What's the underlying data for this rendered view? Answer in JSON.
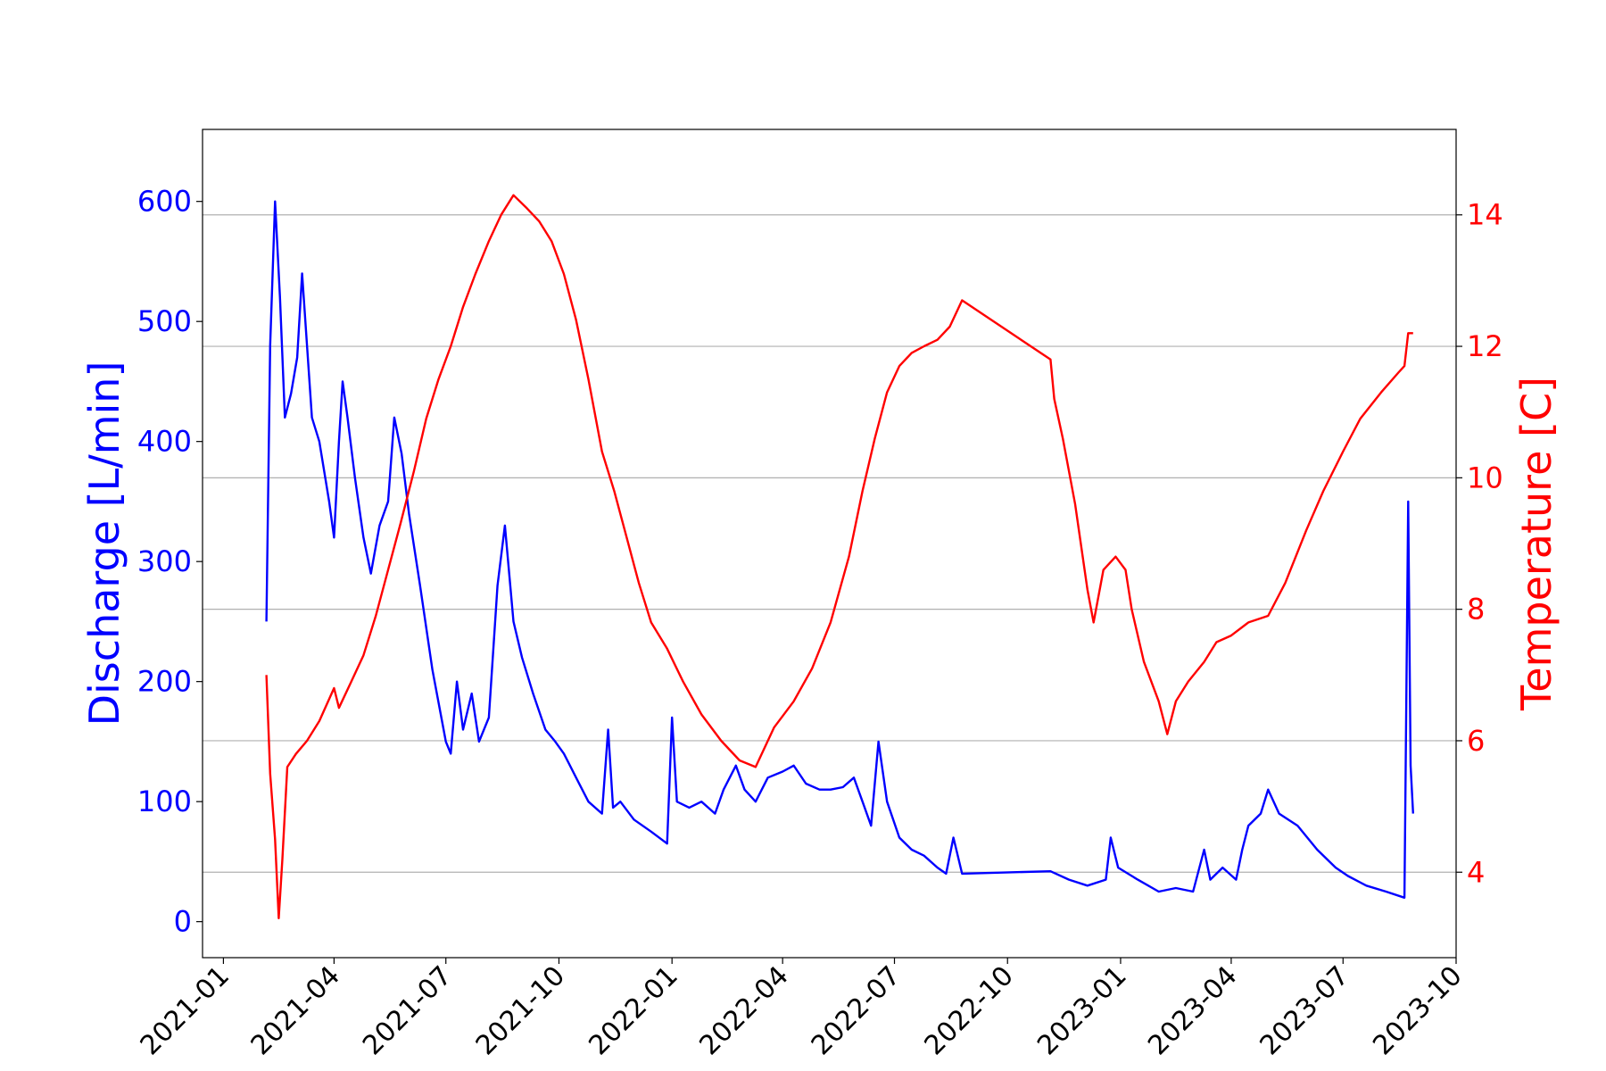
{
  "chart_data": {
    "type": "line",
    "title": "",
    "xlabel": "",
    "x_axis": {
      "type": "date",
      "range": [
        "2020-12-15",
        "2023-10-01"
      ],
      "ticks": [
        "2021-01",
        "2021-04",
        "2021-07",
        "2021-10",
        "2022-01",
        "2022-04",
        "2022-07",
        "2022-10",
        "2023-01",
        "2023-04",
        "2023-07",
        "2023-10"
      ],
      "tick_rotation": 45
    },
    "y_left": {
      "label": "Discharge [L/min]",
      "color": "#0000ff",
      "range": [
        -30,
        660
      ],
      "ticks": [
        "0",
        "100",
        "200",
        "300",
        "400",
        "500",
        "600"
      ]
    },
    "y_right": {
      "label": "Temperature [C]",
      "color": "#ff0000",
      "range": [
        2.7,
        15.3
      ],
      "ticks": [
        "4",
        "6",
        "8",
        "10",
        "12",
        "14"
      ],
      "grid": true
    },
    "grid": "horizontal lines at right-axis ticks",
    "legend": "none",
    "series": [
      {
        "axis": "left",
        "color": "#0000ff",
        "points": [
          [
            "2021-02-05",
            250
          ],
          [
            "2021-02-08",
            480
          ],
          [
            "2021-02-12",
            600
          ],
          [
            "2021-02-16",
            520
          ],
          [
            "2021-02-20",
            420
          ],
          [
            "2021-02-25",
            440
          ],
          [
            "2021-03-02",
            470
          ],
          [
            "2021-03-06",
            540
          ],
          [
            "2021-03-10",
            480
          ],
          [
            "2021-03-14",
            420
          ],
          [
            "2021-03-20",
            400
          ],
          [
            "2021-03-28",
            350
          ],
          [
            "2021-04-01",
            320
          ],
          [
            "2021-04-05",
            400
          ],
          [
            "2021-04-08",
            450
          ],
          [
            "2021-04-12",
            420
          ],
          [
            "2021-04-18",
            370
          ],
          [
            "2021-04-25",
            320
          ],
          [
            "2021-05-01",
            290
          ],
          [
            "2021-05-08",
            330
          ],
          [
            "2021-05-15",
            350
          ],
          [
            "2021-05-20",
            420
          ],
          [
            "2021-05-26",
            390
          ],
          [
            "2021-06-01",
            340
          ],
          [
            "2021-06-10",
            280
          ],
          [
            "2021-06-20",
            210
          ],
          [
            "2021-07-01",
            150
          ],
          [
            "2021-07-05",
            140
          ],
          [
            "2021-07-10",
            200
          ],
          [
            "2021-07-15",
            160
          ],
          [
            "2021-07-22",
            190
          ],
          [
            "2021-07-28",
            150
          ],
          [
            "2021-08-05",
            170
          ],
          [
            "2021-08-12",
            280
          ],
          [
            "2021-08-18",
            330
          ],
          [
            "2021-08-25",
            250
          ],
          [
            "2021-09-01",
            220
          ],
          [
            "2021-09-10",
            190
          ],
          [
            "2021-09-20",
            160
          ],
          [
            "2021-09-28",
            150
          ],
          [
            "2021-10-05",
            140
          ],
          [
            "2021-10-15",
            120
          ],
          [
            "2021-10-25",
            100
          ],
          [
            "2021-11-05",
            90
          ],
          [
            "2021-11-10",
            160
          ],
          [
            "2021-11-14",
            95
          ],
          [
            "2021-11-20",
            100
          ],
          [
            "2021-12-01",
            85
          ],
          [
            "2021-12-15",
            75
          ],
          [
            "2021-12-28",
            65
          ],
          [
            "2022-01-01",
            170
          ],
          [
            "2022-01-05",
            100
          ],
          [
            "2022-01-15",
            95
          ],
          [
            "2022-01-25",
            100
          ],
          [
            "2022-02-05",
            90
          ],
          [
            "2022-02-12",
            110
          ],
          [
            "2022-02-22",
            130
          ],
          [
            "2022-03-01",
            110
          ],
          [
            "2022-03-10",
            100
          ],
          [
            "2022-03-20",
            120
          ],
          [
            "2022-04-01",
            125
          ],
          [
            "2022-04-10",
            130
          ],
          [
            "2022-04-20",
            115
          ],
          [
            "2022-05-01",
            110
          ],
          [
            "2022-05-10",
            110
          ],
          [
            "2022-05-20",
            112
          ],
          [
            "2022-05-29",
            120
          ],
          [
            "2022-06-05",
            100
          ],
          [
            "2022-06-12",
            80
          ],
          [
            "2022-06-18",
            150
          ],
          [
            "2022-06-25",
            100
          ],
          [
            "2022-07-05",
            70
          ],
          [
            "2022-07-15",
            60
          ],
          [
            "2022-07-25",
            55
          ],
          [
            "2022-08-05",
            45
          ],
          [
            "2022-08-12",
            40
          ],
          [
            "2022-08-18",
            70
          ],
          [
            "2022-08-25",
            40
          ],
          [
            "2022-11-05",
            42
          ],
          [
            "2022-11-20",
            35
          ],
          [
            "2022-12-05",
            30
          ],
          [
            "2022-12-20",
            35
          ],
          [
            "2022-12-24",
            70
          ],
          [
            "2022-12-30",
            45
          ],
          [
            "2023-01-15",
            35
          ],
          [
            "2023-02-01",
            25
          ],
          [
            "2023-02-15",
            28
          ],
          [
            "2023-03-01",
            25
          ],
          [
            "2023-03-10",
            60
          ],
          [
            "2023-03-15",
            35
          ],
          [
            "2023-03-25",
            45
          ],
          [
            "2023-04-05",
            35
          ],
          [
            "2023-04-10",
            60
          ],
          [
            "2023-04-15",
            80
          ],
          [
            "2023-04-25",
            90
          ],
          [
            "2023-05-01",
            110
          ],
          [
            "2023-05-10",
            90
          ],
          [
            "2023-05-25",
            80
          ],
          [
            "2023-06-10",
            60
          ],
          [
            "2023-06-25",
            45
          ],
          [
            "2023-07-05",
            38
          ],
          [
            "2023-07-20",
            30
          ],
          [
            "2023-08-05",
            25
          ],
          [
            "2023-08-20",
            20
          ],
          [
            "2023-08-23",
            350
          ],
          [
            "2023-08-25",
            130
          ],
          [
            "2023-08-27",
            90
          ]
        ]
      },
      {
        "axis": "right",
        "color": "#ff0000",
        "points": [
          [
            "2021-02-05",
            7.0
          ],
          [
            "2021-02-08",
            5.5
          ],
          [
            "2021-02-12",
            4.5
          ],
          [
            "2021-02-15",
            3.3
          ],
          [
            "2021-02-18",
            4.2
          ],
          [
            "2021-02-22",
            5.6
          ],
          [
            "2021-03-01",
            5.8
          ],
          [
            "2021-03-10",
            6.0
          ],
          [
            "2021-03-20",
            6.3
          ],
          [
            "2021-04-01",
            6.8
          ],
          [
            "2021-04-05",
            6.5
          ],
          [
            "2021-04-15",
            6.9
          ],
          [
            "2021-04-25",
            7.3
          ],
          [
            "2021-05-05",
            7.9
          ],
          [
            "2021-05-15",
            8.6
          ],
          [
            "2021-05-25",
            9.3
          ],
          [
            "2021-06-05",
            10.1
          ],
          [
            "2021-06-15",
            10.9
          ],
          [
            "2021-06-25",
            11.5
          ],
          [
            "2021-07-05",
            12.0
          ],
          [
            "2021-07-15",
            12.6
          ],
          [
            "2021-07-25",
            13.1
          ],
          [
            "2021-08-05",
            13.6
          ],
          [
            "2021-08-15",
            14.0
          ],
          [
            "2021-08-25",
            14.3
          ],
          [
            "2021-09-05",
            14.1
          ],
          [
            "2021-09-15",
            13.9
          ],
          [
            "2021-09-25",
            13.6
          ],
          [
            "2021-10-05",
            13.1
          ],
          [
            "2021-10-15",
            12.4
          ],
          [
            "2021-10-25",
            11.5
          ],
          [
            "2021-11-05",
            10.4
          ],
          [
            "2021-11-15",
            9.8
          ],
          [
            "2021-11-25",
            9.1
          ],
          [
            "2021-12-05",
            8.4
          ],
          [
            "2021-12-15",
            7.8
          ],
          [
            "2021-12-28",
            7.4
          ],
          [
            "2022-01-10",
            6.9
          ],
          [
            "2022-01-25",
            6.4
          ],
          [
            "2022-02-10",
            6.0
          ],
          [
            "2022-02-25",
            5.7
          ],
          [
            "2022-03-10",
            5.6
          ],
          [
            "2022-03-25",
            6.2
          ],
          [
            "2022-04-10",
            6.6
          ],
          [
            "2022-04-25",
            7.1
          ],
          [
            "2022-05-10",
            7.8
          ],
          [
            "2022-05-25",
            8.8
          ],
          [
            "2022-06-05",
            9.8
          ],
          [
            "2022-06-15",
            10.6
          ],
          [
            "2022-06-25",
            11.3
          ],
          [
            "2022-07-05",
            11.7
          ],
          [
            "2022-07-15",
            11.9
          ],
          [
            "2022-07-25",
            12.0
          ],
          [
            "2022-08-05",
            12.1
          ],
          [
            "2022-08-15",
            12.3
          ],
          [
            "2022-08-25",
            12.7
          ],
          [
            "2022-11-05",
            11.8
          ],
          [
            "2022-11-08",
            11.2
          ],
          [
            "2022-11-15",
            10.6
          ],
          [
            "2022-11-25",
            9.6
          ],
          [
            "2022-12-05",
            8.3
          ],
          [
            "2022-12-10",
            7.8
          ],
          [
            "2022-12-18",
            8.6
          ],
          [
            "2022-12-28",
            8.8
          ],
          [
            "2023-01-05",
            8.6
          ],
          [
            "2023-01-10",
            8.0
          ],
          [
            "2023-01-20",
            7.2
          ],
          [
            "2023-02-01",
            6.6
          ],
          [
            "2023-02-08",
            6.1
          ],
          [
            "2023-02-15",
            6.6
          ],
          [
            "2023-02-25",
            6.9
          ],
          [
            "2023-03-10",
            7.2
          ],
          [
            "2023-03-20",
            7.5
          ],
          [
            "2023-04-01",
            7.6
          ],
          [
            "2023-04-15",
            7.8
          ],
          [
            "2023-05-01",
            7.9
          ],
          [
            "2023-05-15",
            8.4
          ],
          [
            "2023-06-01",
            9.2
          ],
          [
            "2023-06-15",
            9.8
          ],
          [
            "2023-07-01",
            10.4
          ],
          [
            "2023-07-15",
            10.9
          ],
          [
            "2023-08-01",
            11.3
          ],
          [
            "2023-08-15",
            11.6
          ],
          [
            "2023-08-20",
            11.7
          ],
          [
            "2023-08-23",
            12.2
          ],
          [
            "2023-08-27",
            12.2
          ]
        ]
      }
    ]
  }
}
